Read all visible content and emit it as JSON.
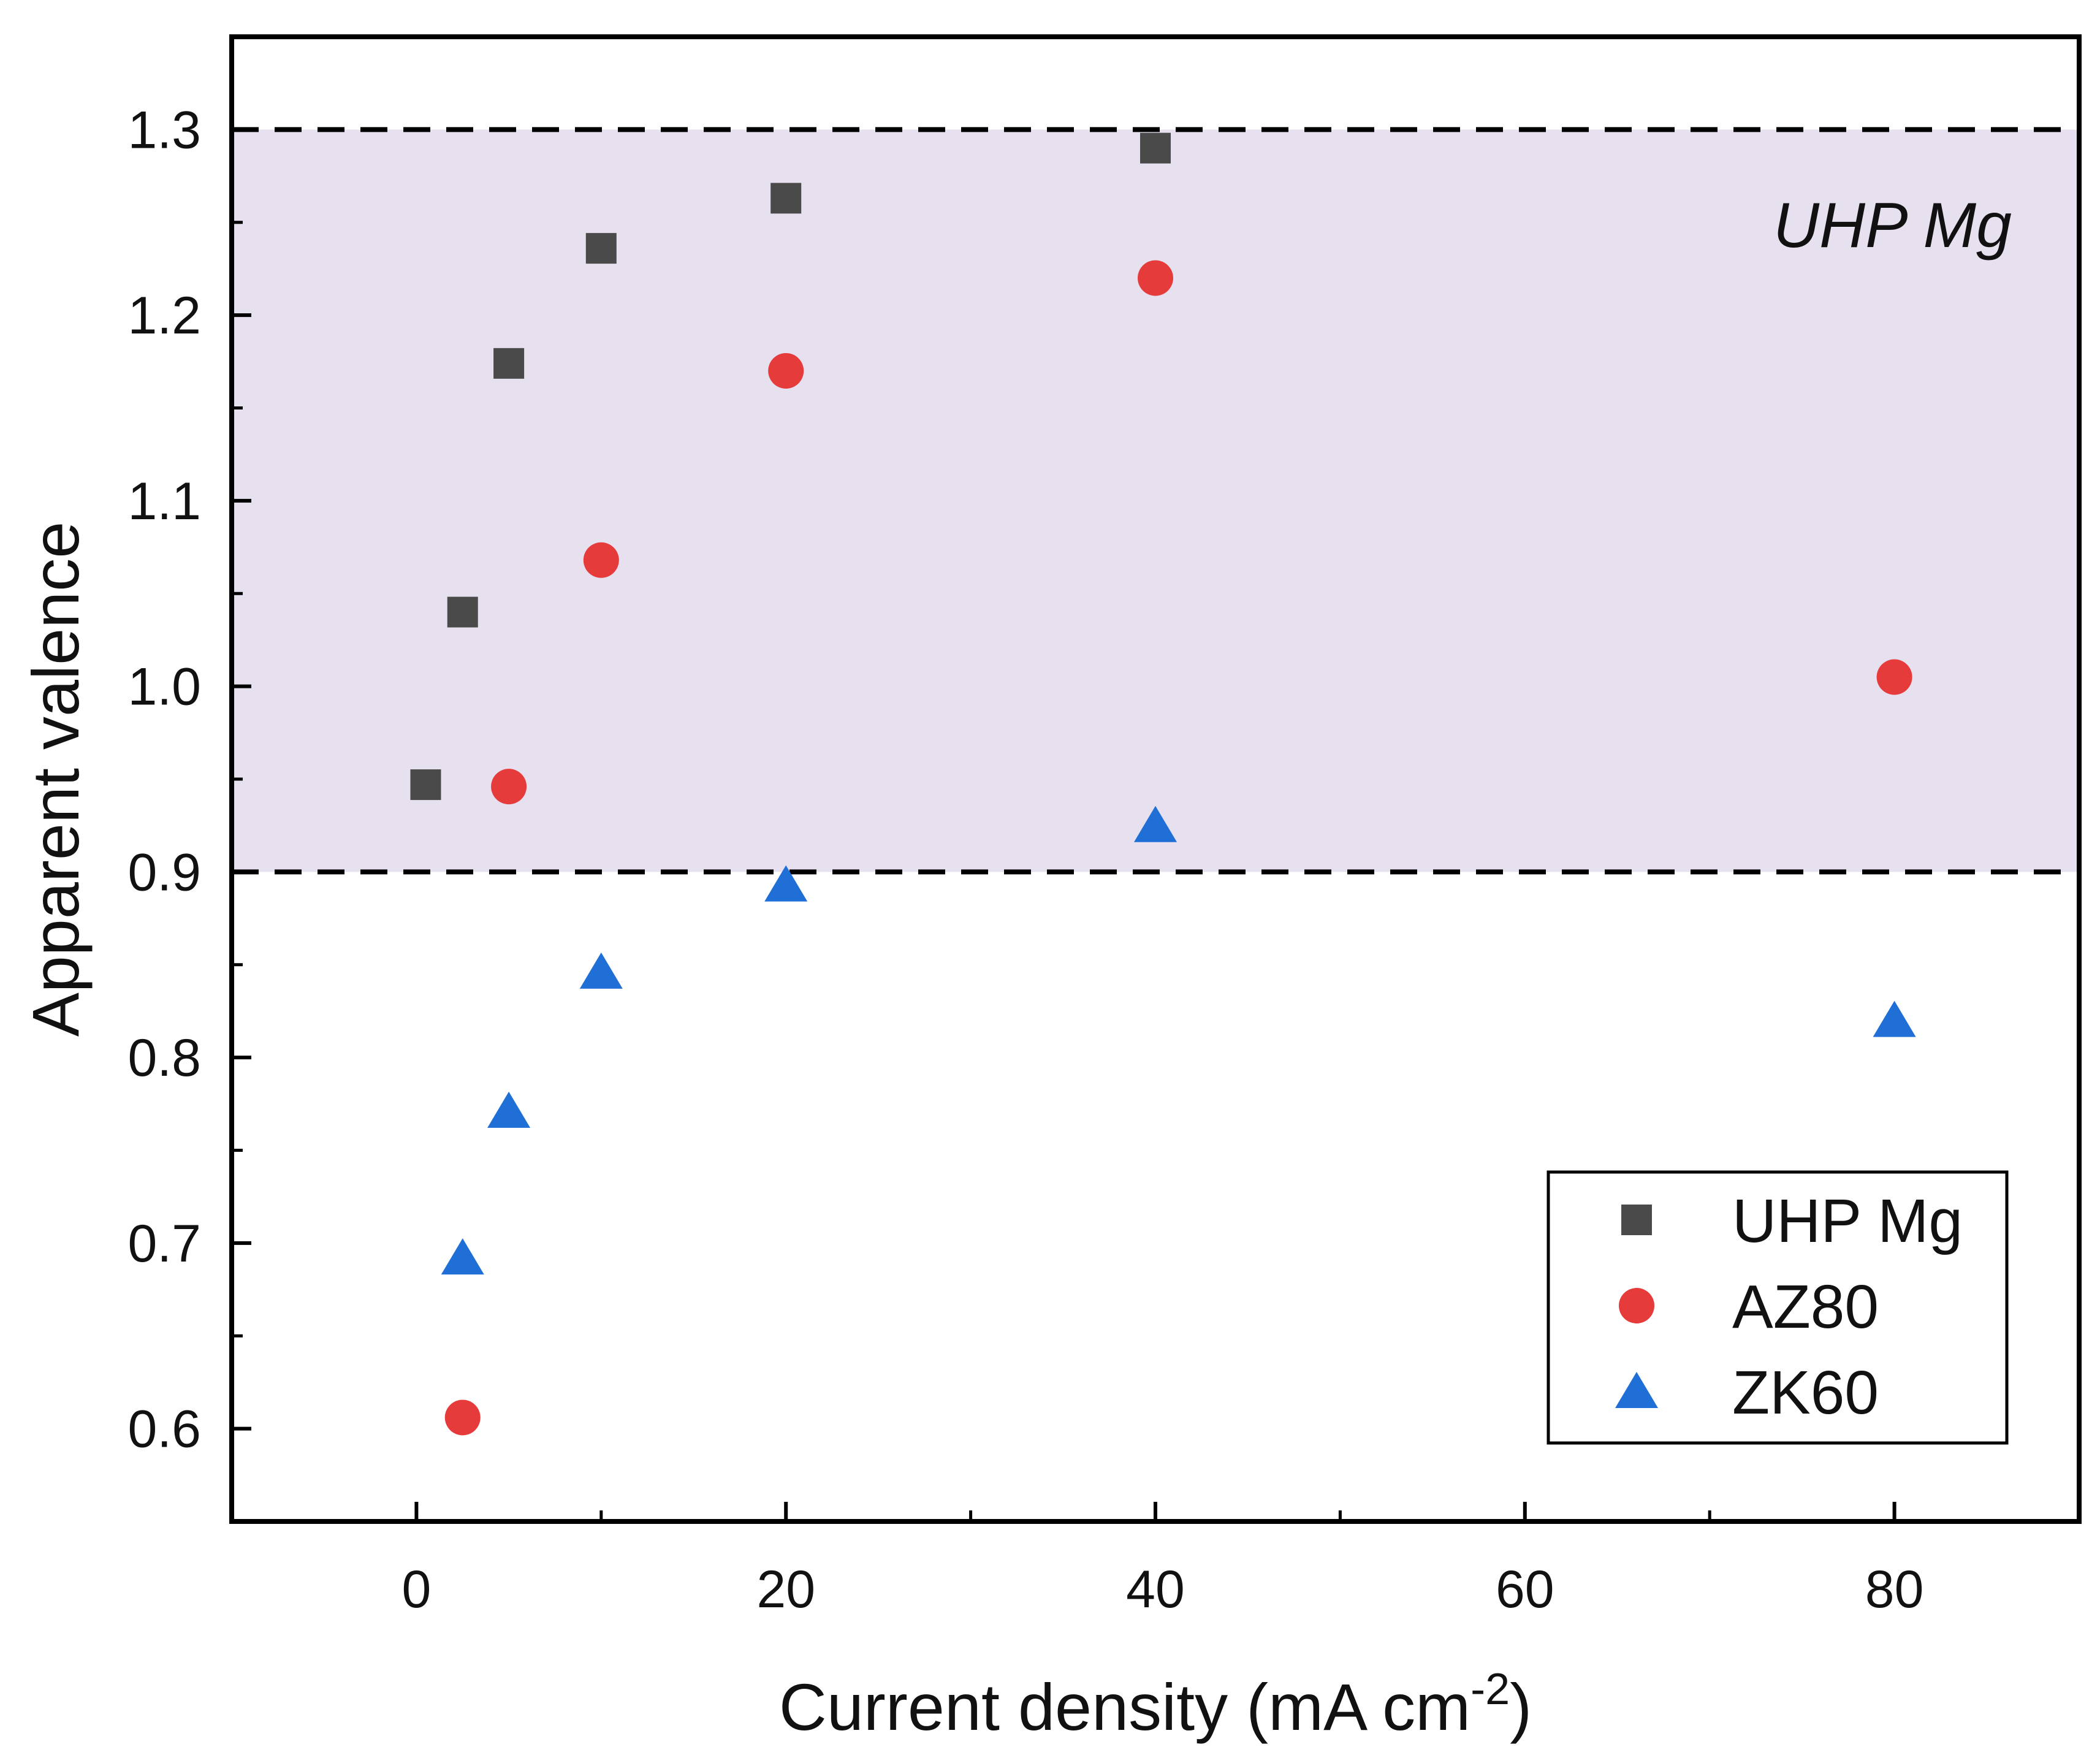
{
  "chart_data": {
    "type": "scatter",
    "xlabel": "Current density (mA cm",
    "xlabel_superscript": "-2",
    "xlabel_suffix": ")",
    "ylabel": "Apparent valence",
    "xlim": [
      -10,
      90
    ],
    "ylim": [
      0.55,
      1.35
    ],
    "x_ticks": [
      0,
      20,
      40,
      60,
      80
    ],
    "x_minor_ticks": [
      10,
      30,
      50,
      70
    ],
    "y_ticks": [
      0.6,
      0.7,
      0.8,
      0.9,
      1.0,
      1.1,
      1.2,
      1.3
    ],
    "x_tick_labels": [
      "0",
      "20",
      "40",
      "60",
      "80"
    ],
    "y_tick_labels": [
      "0.6",
      "0.7",
      "0.8",
      "0.9",
      "1.0",
      "1.1",
      "1.2",
      "1.3"
    ],
    "band": {
      "label": "UHP Mg",
      "range": [
        0.9,
        1.3
      ],
      "color": "#e6e0ef",
      "line_style": "dashed"
    },
    "legend_position": "bottom-right",
    "series": [
      {
        "name": "UHP Mg",
        "marker": "square",
        "color": "#4a4a4a",
        "points": [
          [
            0.5,
            0.947
          ],
          [
            2.5,
            1.04
          ],
          [
            5,
            1.174
          ],
          [
            10,
            1.236
          ],
          [
            20,
            1.263
          ],
          [
            40,
            1.29
          ]
        ]
      },
      {
        "name": "AZ80",
        "marker": "circle",
        "color": "#e63b3b",
        "points": [
          [
            2.5,
            0.606
          ],
          [
            5,
            0.946
          ],
          [
            10,
            1.068
          ],
          [
            20,
            1.17
          ],
          [
            40,
            1.22
          ],
          [
            80,
            1.005
          ]
        ]
      },
      {
        "name": "ZK60",
        "marker": "triangle",
        "color": "#1f6fd6",
        "points": [
          [
            2.5,
            0.692
          ],
          [
            5,
            0.771
          ],
          [
            10,
            0.846
          ],
          [
            20,
            0.893
          ],
          [
            40,
            0.925
          ],
          [
            80,
            0.82
          ]
        ]
      }
    ]
  }
}
